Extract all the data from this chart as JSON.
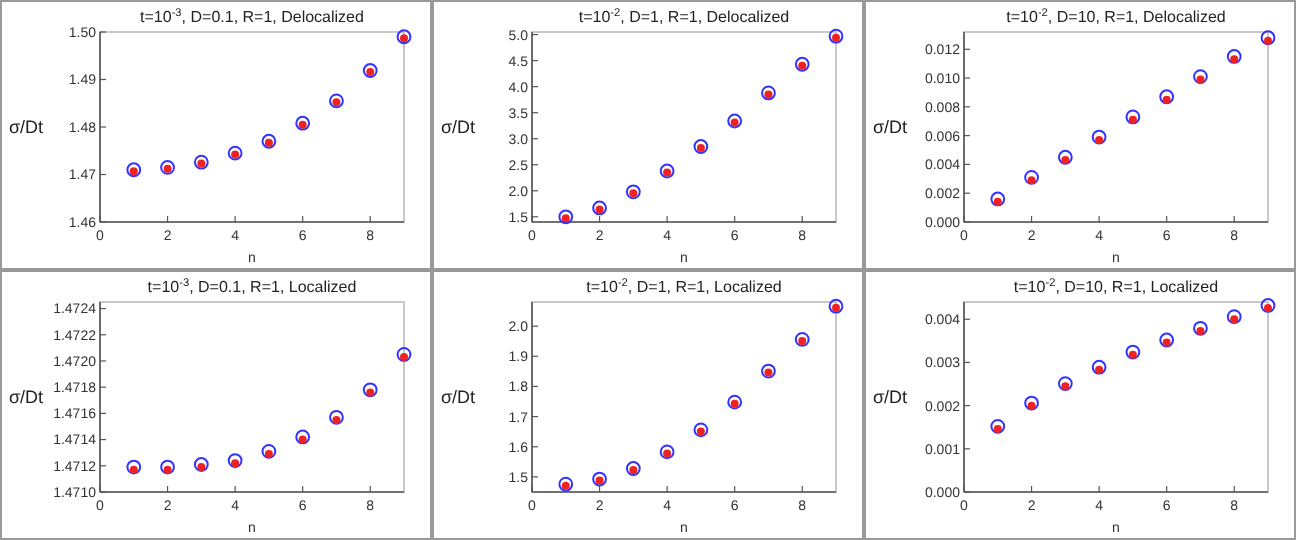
{
  "chart_data": [
    {
      "type": "scatter",
      "title": "t=10$^{-3}$, D=0.1, R=1, Delocalized",
      "xlabel": "n",
      "ylabel": "σ/Dt",
      "x": [
        1,
        2,
        3,
        4,
        5,
        6,
        7,
        8,
        9
      ],
      "marker": "circle",
      "xlim": [
        0,
        9
      ],
      "xticks": [
        0,
        2,
        4,
        6,
        8
      ],
      "ylim": [
        1.46,
        1.5
      ],
      "yticks": [
        {
          "value": 1.46,
          "label": "1.46"
        },
        {
          "value": 1.47,
          "label": "1.47"
        },
        {
          "value": 1.48,
          "label": "1.48"
        },
        {
          "value": 1.49,
          "label": "1.49"
        },
        {
          "value": 1.5,
          "label": "1.50"
        }
      ],
      "series": [
        {
          "color": "#3333ff",
          "values": [
            1.471,
            1.4715,
            1.4726,
            1.4745,
            1.477,
            1.4808,
            1.4855,
            1.4919,
            1.499
          ]
        },
        {
          "color": "#ee2222",
          "values": [
            1.4707,
            1.4712,
            1.4723,
            1.4742,
            1.4767,
            1.4805,
            1.4852,
            1.4916,
            1.4987
          ]
        }
      ]
    },
    {
      "type": "scatter",
      "title": "t=10$^{-2}$, D=1, R=1, Delocalized",
      "xlabel": "n",
      "ylabel": "σ/Dt",
      "x": [
        1,
        2,
        3,
        4,
        5,
        6,
        7,
        8,
        9
      ],
      "marker": "circle",
      "xlim": [
        0,
        9
      ],
      "xticks": [
        0,
        2,
        4,
        6,
        8
      ],
      "ylim": [
        1.4,
        5.05
      ],
      "yticks": [
        1.5,
        {
          "value": 2,
          "label": "2.0"
        },
        2.5,
        {
          "value": 3,
          "label": "3.0"
        },
        3.5,
        {
          "value": 4,
          "label": "4.0"
        },
        4.5,
        {
          "value": 5,
          "label": "5.0"
        }
      ],
      "series": [
        {
          "color": "#3333ff",
          "values": [
            1.5,
            1.67,
            1.98,
            2.38,
            2.85,
            3.34,
            3.88,
            4.43,
            4.97
          ]
        },
        {
          "color": "#ee2222",
          "values": [
            1.47,
            1.64,
            1.95,
            2.35,
            2.82,
            3.31,
            3.85,
            4.4,
            4.94
          ]
        }
      ]
    },
    {
      "type": "scatter",
      "title": "t=10$^{-2}$, D=10, R=1, Delocalized",
      "xlabel": "n",
      "ylabel": "σ/Dt",
      "x": [
        1,
        2,
        3,
        4,
        5,
        6,
        7,
        8,
        9
      ],
      "marker": "circle",
      "xlim": [
        0,
        9
      ],
      "xticks": [
        0,
        2,
        4,
        6,
        8
      ],
      "ylim": [
        0,
        0.0132
      ],
      "yticks": [
        {
          "value": 0,
          "label": "0.000"
        },
        {
          "value": 0.002,
          "label": "0.002"
        },
        {
          "value": 0.004,
          "label": "0.004"
        },
        {
          "value": 0.006,
          "label": "0.006"
        },
        {
          "value": 0.008,
          "label": "0.008"
        },
        {
          "value": 0.01,
          "label": "0.010"
        },
        {
          "value": 0.012,
          "label": "0.012"
        }
      ],
      "series": [
        {
          "color": "#3333ff",
          "values": [
            0.0016,
            0.0031,
            0.0045,
            0.0059,
            0.0073,
            0.0087,
            0.0101,
            0.0115,
            0.0128
          ]
        },
        {
          "color": "#ee2222",
          "values": [
            0.0014,
            0.0029,
            0.0043,
            0.0057,
            0.0071,
            0.0085,
            0.0099,
            0.0113,
            0.0126
          ]
        }
      ]
    },
    {
      "type": "scatter",
      "title": "t=10$^{-3}$, D=0.1, R=1, Localized",
      "xlabel": "n",
      "ylabel": "σ/Dt",
      "x": [
        1,
        2,
        3,
        4,
        5,
        6,
        7,
        8,
        9
      ],
      "marker": "circle",
      "xlim": [
        0,
        9
      ],
      "xticks": [
        0,
        2,
        4,
        6,
        8
      ],
      "ylim": [
        1.471,
        1.47245
      ],
      "yticks": [
        {
          "value": 1.471,
          "label": "1.4710"
        },
        {
          "value": 1.4712,
          "label": "1.4712"
        },
        {
          "value": 1.4714,
          "label": "1.4714"
        },
        {
          "value": 1.4716,
          "label": "1.4716"
        },
        {
          "value": 1.4718,
          "label": "1.4718"
        },
        {
          "value": 1.472,
          "label": "1.4720"
        },
        {
          "value": 1.4722,
          "label": "1.4722"
        },
        {
          "value": 1.4724,
          "label": "1.4724"
        }
      ],
      "series": [
        {
          "color": "#3333ff",
          "values": [
            1.47119,
            1.47119,
            1.47121,
            1.47124,
            1.47131,
            1.47142,
            1.47157,
            1.47178,
            1.47205
          ]
        },
        {
          "color": "#ee2222",
          "values": [
            1.47117,
            1.47117,
            1.47119,
            1.47122,
            1.47129,
            1.4714,
            1.47155,
            1.47176,
            1.47203
          ]
        }
      ]
    },
    {
      "type": "scatter",
      "title": "t=10$^{-2}$, D=1, R=1, Localized",
      "xlabel": "n",
      "ylabel": "σ/Dt",
      "x": [
        1,
        2,
        3,
        4,
        5,
        6,
        7,
        8,
        9
      ],
      "marker": "circle",
      "xlim": [
        0,
        9
      ],
      "xticks": [
        0,
        2,
        4,
        6,
        8
      ],
      "ylim": [
        1.45,
        2.08
      ],
      "yticks": [
        1.5,
        1.6,
        1.7,
        1.8,
        1.9,
        {
          "value": 2,
          "label": "2.0"
        }
      ],
      "series": [
        {
          "color": "#3333ff",
          "values": [
            1.476,
            1.493,
            1.528,
            1.583,
            1.656,
            1.748,
            1.851,
            1.956,
            2.066
          ]
        },
        {
          "color": "#ee2222",
          "values": [
            1.471,
            1.488,
            1.523,
            1.578,
            1.651,
            1.743,
            1.846,
            1.951,
            2.061
          ]
        }
      ]
    },
    {
      "type": "scatter",
      "title": "t=10$^{-2}$, D=10, R=1, Localized",
      "xlabel": "n",
      "ylabel": "σ/Dt",
      "x": [
        1,
        2,
        3,
        4,
        5,
        6,
        7,
        8,
        9
      ],
      "marker": "circle",
      "xlim": [
        0,
        9
      ],
      "xticks": [
        0,
        2,
        4,
        6,
        8
      ],
      "ylim": [
        0,
        0.0044
      ],
      "yticks": [
        {
          "value": 0,
          "label": "0.000"
        },
        {
          "value": 0.001,
          "label": "0.001"
        },
        {
          "value": 0.002,
          "label": "0.002"
        },
        {
          "value": 0.003,
          "label": "0.003"
        },
        {
          "value": 0.004,
          "label": "0.004"
        }
      ],
      "series": [
        {
          "color": "#3333ff",
          "values": [
            0.00152,
            0.00206,
            0.00251,
            0.00289,
            0.00324,
            0.00352,
            0.00379,
            0.00406,
            0.00432
          ]
        },
        {
          "color": "#ee2222",
          "values": [
            0.00146,
            0.002,
            0.00245,
            0.00283,
            0.00318,
            0.00346,
            0.00373,
            0.004,
            0.00426
          ]
        }
      ]
    }
  ]
}
